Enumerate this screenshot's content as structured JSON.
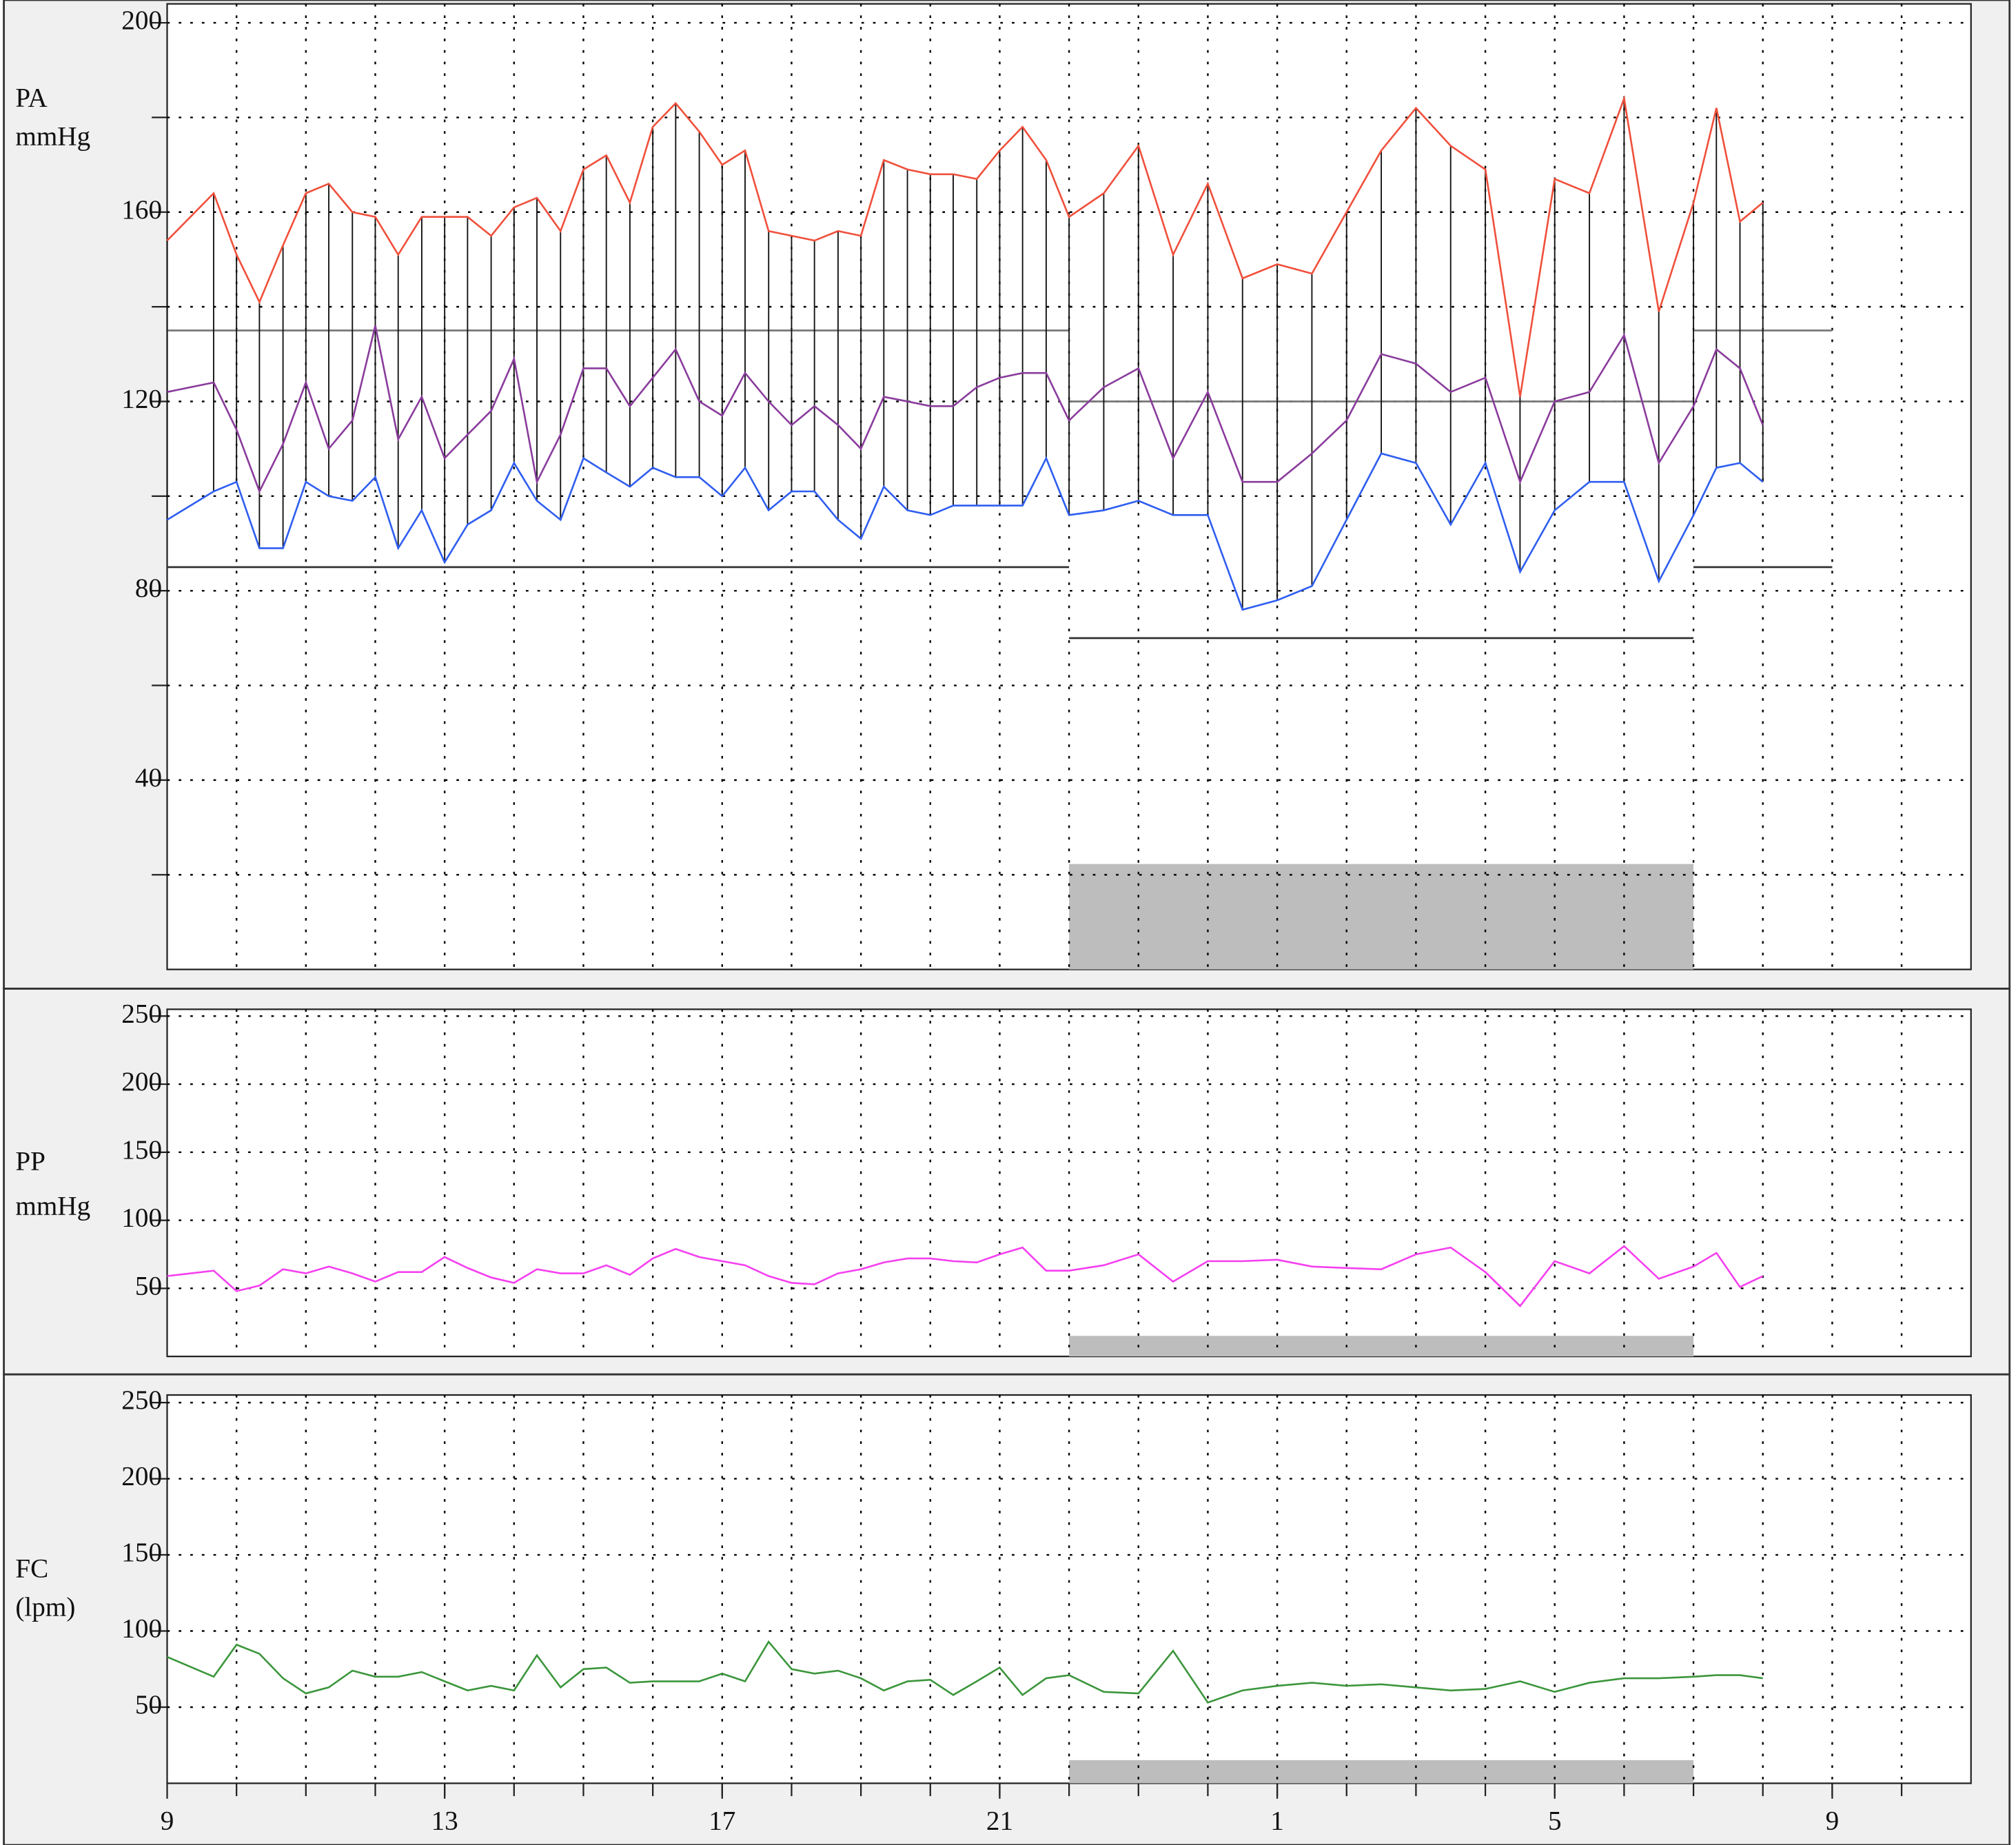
{
  "chart_data": [
    {
      "type": "line",
      "ylabel": [
        "PA",
        "mmHg"
      ],
      "x": [
        9,
        9.67,
        10,
        10.33,
        10.67,
        11,
        11.33,
        11.67,
        12,
        12.33,
        12.67,
        13,
        13.33,
        13.67,
        14,
        14.33,
        14.67,
        15,
        15.33,
        15.67,
        16,
        16.33,
        16.67,
        17,
        17.33,
        17.67,
        18,
        18.33,
        18.67,
        19,
        19.33,
        19.67,
        20,
        20.33,
        20.67,
        21,
        21.33,
        21.67,
        22,
        22.5,
        23,
        23.5,
        24,
        24.5,
        25,
        25.5,
        26,
        26.5,
        27,
        27.5,
        28,
        28.5,
        29,
        29.5,
        30,
        30.5,
        31,
        31.33,
        31.67,
        32
      ],
      "series": [
        {
          "color": "#f0503c",
          "values": [
            154,
            164,
            151,
            141,
            153,
            164,
            166,
            160,
            159,
            151,
            159,
            159,
            159,
            155,
            161,
            163,
            156,
            169,
            172,
            162,
            178,
            183,
            177,
            170,
            173,
            156,
            155,
            154,
            156,
            155,
            171,
            169,
            168,
            168,
            167,
            173,
            178,
            171,
            159,
            164,
            174,
            151,
            166,
            146,
            149,
            147,
            160,
            173,
            182,
            174,
            169,
            121,
            167,
            164,
            184,
            139,
            162,
            182,
            158,
            162
          ]
        },
        {
          "color": "#8a3c9c",
          "values": [
            122,
            124,
            114,
            101,
            111,
            124,
            110,
            116,
            136,
            112,
            121,
            108,
            113,
            118,
            129,
            103,
            113,
            127,
            127,
            119,
            125,
            131,
            120,
            117,
            126,
            120,
            115,
            119,
            115,
            110,
            121,
            120,
            119,
            119,
            123,
            125,
            126,
            126,
            116,
            123,
            127,
            108,
            122,
            103,
            103,
            109,
            116,
            130,
            128,
            122,
            125,
            103,
            120,
            122,
            134,
            107,
            119,
            131,
            127,
            115
          ]
        },
        {
          "color": "#2f5ef0",
          "values": [
            95,
            101,
            103,
            89,
            89,
            103,
            100,
            99,
            104,
            89,
            97,
            86,
            94,
            97,
            107,
            99,
            95,
            108,
            105,
            102,
            106,
            104,
            104,
            100,
            106,
            97,
            101,
            101,
            95,
            91,
            102,
            97,
            96,
            98,
            98,
            98,
            98,
            108,
            96,
            97,
            99,
            96,
            96,
            76,
            78,
            81,
            95,
            109,
            107,
            94,
            107,
            84,
            97,
            103,
            103,
            82,
            96,
            106,
            107,
            103
          ]
        }
      ],
      "range_bars": [
        0,
        2
      ],
      "thresholds": [
        {
          "span": [
            9,
            22
          ],
          "values": [
            135,
            85
          ]
        },
        {
          "span": [
            22,
            31
          ],
          "values": [
            120,
            70
          ]
        },
        {
          "span": [
            31,
            33
          ],
          "values": [
            135,
            85
          ]
        }
      ],
      "night": [
        22,
        31
      ],
      "xlim": [
        9,
        35
      ],
      "xgrid": [
        10,
        11,
        12,
        13,
        14,
        15,
        16,
        17,
        18,
        19,
        20,
        21,
        22,
        23,
        24,
        25,
        26,
        27,
        28,
        29,
        30,
        31,
        32,
        33,
        34
      ],
      "ylim": [
        0,
        204
      ],
      "yticks": [
        40,
        80,
        120,
        160,
        200
      ],
      "yminor": [
        20,
        60,
        100,
        140,
        180
      ]
    },
    {
      "type": "line",
      "ylabel": [
        "PP",
        "mmHg"
      ],
      "x": [
        9,
        9.67,
        10,
        10.33,
        10.67,
        11,
        11.33,
        11.67,
        12,
        12.33,
        12.67,
        13,
        13.33,
        13.67,
        14,
        14.33,
        14.67,
        15,
        15.33,
        15.67,
        16,
        16.33,
        16.67,
        17,
        17.33,
        17.67,
        18,
        18.33,
        18.67,
        19,
        19.33,
        19.67,
        20,
        20.33,
        20.67,
        21,
        21.33,
        21.67,
        22,
        22.5,
        23,
        23.5,
        24,
        24.5,
        25,
        25.5,
        26,
        26.5,
        27,
        27.5,
        28,
        28.5,
        29,
        29.5,
        30,
        30.5,
        31,
        31.33,
        31.67,
        32
      ],
      "series": [
        {
          "color": "#f540f0",
          "values": [
            59,
            63,
            48,
            52,
            64,
            61,
            66,
            61,
            55,
            62,
            62,
            73,
            65,
            58,
            54,
            64,
            61,
            61,
            67,
            60,
            72,
            79,
            73,
            70,
            67,
            59,
            54,
            53,
            61,
            64,
            69,
            72,
            72,
            70,
            69,
            75,
            80,
            63,
            63,
            67,
            75,
            55,
            70,
            70,
            71,
            66,
            65,
            64,
            75,
            80,
            62,
            37,
            70,
            61,
            81,
            57,
            66,
            76,
            51,
            59
          ]
        }
      ],
      "night": [
        22,
        31
      ],
      "xlim": [
        9,
        35
      ],
      "xgrid": [
        10,
        11,
        12,
        13,
        14,
        15,
        16,
        17,
        18,
        19,
        20,
        21,
        22,
        23,
        24,
        25,
        26,
        27,
        28,
        29,
        30,
        31,
        32,
        33,
        34
      ],
      "ylim": [
        0,
        255
      ],
      "yticks": [
        50,
        100,
        150,
        200,
        250
      ]
    },
    {
      "type": "line",
      "ylabel": [
        "FC",
        "(lpm)"
      ],
      "x": [
        9,
        9.67,
        10,
        10.33,
        10.67,
        11,
        11.33,
        11.67,
        12,
        12.33,
        12.67,
        13,
        13.33,
        13.67,
        14,
        14.33,
        14.67,
        15,
        15.33,
        15.67,
        16,
        16.33,
        16.67,
        17,
        17.33,
        17.67,
        18,
        18.33,
        18.67,
        19,
        19.33,
        19.67,
        20,
        20.33,
        20.67,
        21,
        21.33,
        21.67,
        22,
        22.5,
        23,
        23.5,
        24,
        24.5,
        25,
        25.5,
        26,
        26.5,
        27,
        27.5,
        28,
        28.5,
        29,
        29.5,
        30,
        30.5,
        31,
        31.33,
        31.67,
        32
      ],
      "series": [
        {
          "color": "#3c963c",
          "values": [
            83,
            70,
            91,
            85,
            69,
            59,
            63,
            74,
            70,
            70,
            73,
            67,
            61,
            64,
            61,
            84,
            63,
            75,
            76,
            66,
            67,
            67,
            67,
            72,
            67,
            93,
            75,
            72,
            74,
            69,
            61,
            67,
            68,
            58,
            67,
            76,
            58,
            69,
            71,
            60,
            59,
            87,
            53,
            61,
            64,
            66,
            64,
            65,
            63,
            61,
            62,
            67,
            60,
            66,
            69,
            69,
            70,
            71,
            71,
            69
          ]
        }
      ],
      "night": [
        22,
        31
      ],
      "xlim": [
        9,
        35
      ],
      "xgrid": [
        10,
        11,
        12,
        13,
        14,
        15,
        16,
        17,
        18,
        19,
        20,
        21,
        22,
        23,
        24,
        25,
        26,
        27,
        28,
        29,
        30,
        31,
        32,
        33,
        34
      ],
      "xticks": [
        9,
        13,
        17,
        21,
        {
          "value": 25,
          "label": "1"
        },
        {
          "value": 29,
          "label": "5"
        },
        {
          "value": 33,
          "label": "9"
        }
      ],
      "ylim": [
        0,
        255
      ],
      "yticks": [
        50,
        100,
        150,
        200,
        250
      ]
    }
  ]
}
